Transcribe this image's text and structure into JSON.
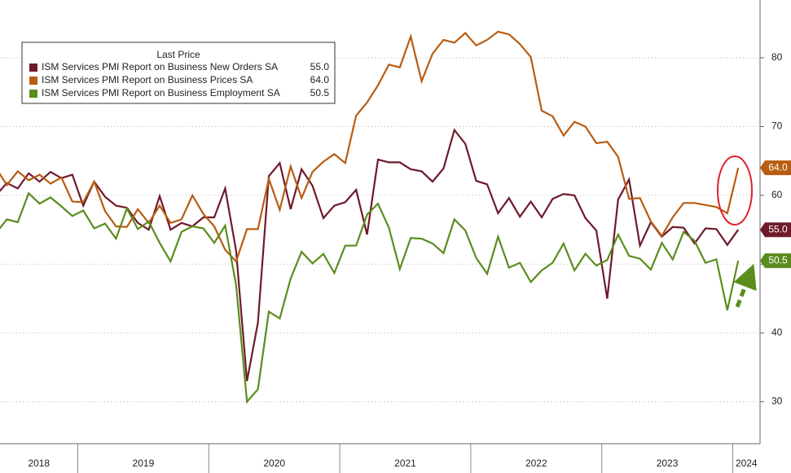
{
  "chart_data": {
    "type": "line",
    "legend_title": "Last Price",
    "years": [
      "2018",
      "2019",
      "2020",
      "2021",
      "2022",
      "2023",
      "2024"
    ],
    "ylim": [
      23.9,
      88.4
    ],
    "yticks": [
      30,
      40,
      50,
      60,
      70,
      80
    ],
    "grid": true,
    "series": [
      {
        "name": "ISM Services PMI Report on Business New Orders SA",
        "color": "#6e1a2b",
        "last_label": "55.0",
        "values": [
          60,
          61.8,
          61,
          63.2,
          62,
          63.4,
          62.5,
          63,
          58.5,
          62,
          59.8,
          58.5,
          58.2,
          56,
          55,
          59.9,
          55,
          56,
          55.5,
          56.8,
          56.8,
          61,
          52,
          33,
          41.5,
          62.8,
          64.7,
          58,
          63.8,
          61.4,
          56.7,
          58.5,
          59,
          60.8,
          54.3,
          65.2,
          64.8,
          64.8,
          63.8,
          63.5,
          62,
          63.9,
          69.5,
          67.5,
          62.1,
          61.6,
          57.4,
          59.6,
          56.9,
          59.1,
          56.8,
          59.5,
          60.2,
          60,
          56.7,
          54.9,
          45,
          59.4,
          62.3,
          52.7,
          56.1,
          54,
          55.4,
          55.3,
          53,
          55.2,
          55.1,
          52.8,
          55.0
        ]
      },
      {
        "name": "ISM Services PMI Report on Business Prices SA",
        "color": "#b85c12",
        "last_label": "64.0",
        "values": [
          64,
          61.5,
          63.5,
          62.2,
          63,
          61.7,
          62.6,
          59.1,
          59,
          62,
          57.7,
          55.5,
          55.4,
          58,
          56,
          58.5,
          56,
          56.5,
          60,
          57.3,
          55.5,
          52.1,
          50.4,
          55.1,
          55.1,
          62.4,
          57.9,
          64.2,
          59.6,
          63.4,
          64.9,
          66,
          64.7,
          71.6,
          73.5,
          76,
          79,
          78.6,
          83.1,
          76.6,
          80.6,
          82.6,
          82.2,
          83.6,
          81.8,
          82.6,
          83.8,
          83.4,
          82,
          80.1,
          72.3,
          71.5,
          68.7,
          70.7,
          70,
          67.6,
          67.8,
          65.6,
          59.5,
          59.6,
          56.2,
          54.1,
          56.8,
          58.9,
          58.9,
          58.6,
          58.3,
          57.4,
          64.0
        ]
      },
      {
        "name": "ISM Services PMI Report on Business Employment SA",
        "color": "#5b8c1e",
        "last_label": "50.5",
        "values": [
          54.5,
          56.5,
          56.1,
          60.3,
          58.8,
          59.7,
          58.4,
          57,
          57.8,
          55.2,
          55.9,
          53.7,
          58.1,
          55.1,
          56.2,
          53.1,
          50.4,
          54.7,
          55.5,
          55.2,
          53.1,
          55.6,
          47,
          30,
          31.8,
          43.1,
          42.1,
          47.9,
          51.8,
          50.1,
          51.5,
          48.7,
          52.7,
          52.7,
          57.2,
          58.8,
          55.3,
          49.3,
          53.8,
          53.7,
          53,
          51.6,
          56.5,
          54.9,
          50.9,
          48.6,
          54,
          49.5,
          50.2,
          47.4,
          49.1,
          50.2,
          53,
          49.1,
          51.5,
          49.8,
          50.6,
          54.3,
          51.2,
          50.8,
          49.2,
          53.1,
          50.7,
          54.7,
          53.4,
          50.2,
          50.7,
          43.3,
          50.5
        ]
      }
    ]
  }
}
